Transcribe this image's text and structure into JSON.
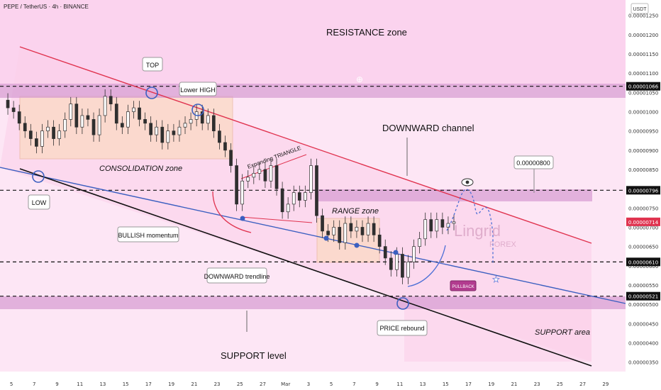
{
  "header": {
    "symbol_title": "PEPE / TetherUS · 4h · BINANCE",
    "currency": "USDT"
  },
  "watermark": {
    "brand": "Lingrid",
    "sub": "FOREX"
  },
  "annotations": {
    "resistance_zone": "RESISTANCE zone",
    "top": "TOP",
    "lower_high": "Lower HIGH",
    "consolidation": "CONSOLIDATION zone",
    "low": "LOW",
    "downward_channel": "DOWNWARD channel",
    "expanding_triangle": "Expanding TRIANGLE",
    "bullish_momentum": "BULLISH momentum",
    "downward_trendline": "DOWNWARD trendline",
    "range_zone": "RANGE zone",
    "pullback": "PULLBACK",
    "price_rebound": "PRICE rebound",
    "support_area": "SUPPORT area",
    "support_level": "SUPPORT level",
    "target_price": "0.00000800"
  },
  "chart_data": {
    "type": "line",
    "title": "PEPE / TetherUS · 4h · BINANCE",
    "ylabel": "USDT",
    "ylim": [
      3.4e-06,
      1.29e-05
    ],
    "y_ticks": [
      "0.00001250",
      "0.00001200",
      "0.00001150",
      "0.00001100",
      "0.00001050",
      "0.00001000",
      "0.00000950",
      "0.00000900",
      "0.00000850",
      "0.00000800",
      "0.00000750",
      "0.00000700",
      "0.00000650",
      "0.00000600",
      "0.00000550",
      "0.00000500",
      "0.00000450",
      "0.00000400",
      "0.00000350"
    ],
    "y_tick_values": [
      12.5,
      12.0,
      11.5,
      11.0,
      10.5,
      10.0,
      9.5,
      9.0,
      8.5,
      8.0,
      7.5,
      7.0,
      6.5,
      6.0,
      5.5,
      5.0,
      4.5,
      4.0,
      3.5
    ],
    "x_ticks": [
      "5",
      "7",
      "9",
      "11",
      "13",
      "15",
      "17",
      "19",
      "21",
      "23",
      "25",
      "27",
      "Mar",
      "3",
      "5",
      "7",
      "9",
      "11",
      "13",
      "15",
      "17",
      "19",
      "21",
      "23",
      "25",
      "27",
      "29"
    ],
    "x_tick_positions": [
      1,
      5,
      9,
      13,
      17,
      21,
      25,
      29,
      33,
      37,
      41,
      45,
      49,
      53,
      57,
      61,
      65,
      69,
      73,
      77,
      81,
      85,
      89,
      93,
      97,
      101,
      105
    ],
    "x_range": [
      0,
      108
    ],
    "price_labels": [
      {
        "label": "0.00001066",
        "value": 10.66,
        "style": "dark"
      },
      {
        "label": "0.00000796",
        "value": 7.96,
        "style": "dark"
      },
      {
        "label": "0.00000714",
        "value": 7.14,
        "style": "red"
      },
      {
        "label": "0.00000610",
        "value": 6.1,
        "style": "dark"
      },
      {
        "label": "0.00000521",
        "value": 5.21,
        "style": "dark"
      }
    ],
    "horizontal_levels": [
      10.66,
      7.96,
      6.1,
      5.21
    ],
    "series": [
      {
        "name": "PEPE/USDT",
        "x": [
          0,
          1,
          2,
          3,
          4,
          5,
          6,
          7,
          8,
          9,
          10,
          11,
          12,
          13,
          14,
          15,
          16,
          17,
          18,
          19,
          20,
          21,
          22,
          23,
          24,
          25,
          26,
          27,
          28,
          29,
          30,
          31,
          32,
          33,
          34,
          35,
          36,
          37,
          38,
          39,
          40,
          41,
          42,
          43,
          44,
          45,
          46,
          47,
          48,
          49,
          50,
          51,
          52,
          53,
          54,
          55,
          56,
          57,
          58,
          59,
          60,
          61,
          62,
          63,
          64,
          65,
          66,
          67,
          68,
          69,
          70,
          71,
          72,
          73,
          74,
          75,
          76,
          77,
          78,
          79
        ],
        "values": [
          10.3,
          10.1,
          10.0,
          9.7,
          9.5,
          9.3,
          9.1,
          9.5,
          9.6,
          9.3,
          9.5,
          9.8,
          10.2,
          9.6,
          9.9,
          9.8,
          9.4,
          9.9,
          10.4,
          10.2,
          9.7,
          9.6,
          10.0,
          10.1,
          9.8,
          9.7,
          9.4,
          9.6,
          9.2,
          9.5,
          9.4,
          9.6,
          9.7,
          9.8,
          10.0,
          9.7,
          9.9,
          9.5,
          9.2,
          9.0,
          8.6,
          7.6,
          8.2,
          8.3,
          8.4,
          8.5,
          8.2,
          8.6,
          8.0,
          7.4,
          7.6,
          7.9,
          7.7,
          7.9,
          8.6,
          7.3,
          6.9,
          6.8,
          7.0,
          6.6,
          7.1,
          6.9,
          7.0,
          6.8,
          7.1,
          6.8,
          6.5,
          6.2,
          5.9,
          6.3,
          5.7,
          6.1,
          6.5,
          6.7,
          7.2,
          6.9,
          7.2,
          7.0,
          7.1,
          7.14
        ]
      }
    ]
  }
}
